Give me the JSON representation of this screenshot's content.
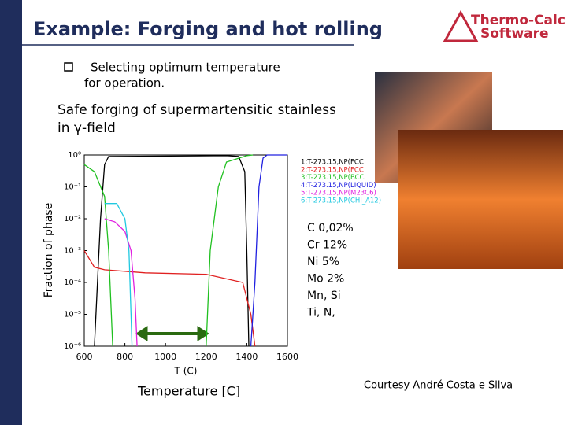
{
  "header": {
    "title": "Example: Forging and hot rolling",
    "logo_line1": "Thermo-Calc",
    "logo_line2": "Software"
  },
  "bullet": {
    "lines": [
      "Selecting optimum temperature",
      "for operation."
    ]
  },
  "subtitle": {
    "lines": [
      "Safe forging of supermartensitic stainless",
      "in γ-field"
    ]
  },
  "composition": [
    "C 0,02%",
    "Cr 12%",
    "Ni 5%",
    "Mo 2%",
    "Mn, Si",
    "Ti, N,"
  ],
  "temperature_label": "Temperature [C]",
  "courtesy": "Courtesy André Costa e Silva",
  "chart_data": {
    "type": "line",
    "x_label": "T (C)",
    "y_label": "Fraction of phase",
    "log_y": true,
    "xlim": [
      600,
      1600
    ],
    "xticks": [
      600,
      800,
      1000,
      1200,
      1400,
      1600
    ],
    "ylim": [
      1e-06,
      1
    ],
    "yticks": [
      {
        "value": 1,
        "label": "10⁰"
      },
      {
        "value": 0.1,
        "label": "10⁻¹"
      },
      {
        "value": 0.01,
        "label": "10⁻²"
      },
      {
        "value": 0.001,
        "label": "10⁻³"
      },
      {
        "value": 0.0001,
        "label": "10⁻⁴"
      },
      {
        "value": 1e-05,
        "label": "10⁻⁵"
      },
      {
        "value": 1e-06,
        "label": "10⁻⁶"
      }
    ],
    "series": [
      {
        "name": "1:T-273.15,NP(FCC",
        "color": "#000000",
        "x": [
          650,
          680,
          700,
          720,
          1300,
          1360,
          1390,
          1400,
          1410
        ],
        "values": [
          1e-06,
          0.01,
          0.5,
          0.9,
          0.95,
          0.9,
          0.3,
          0.001,
          1e-06
        ]
      },
      {
        "name": "2:T-273.15,NP(FCC",
        "color": "#e02020",
        "x": [
          600,
          650,
          700,
          900,
          1200,
          1380,
          1420,
          1440
        ],
        "values": [
          0.001,
          0.0003,
          0.00025,
          0.0002,
          0.00018,
          0.0001,
          1e-05,
          1e-06
        ]
      },
      {
        "name": "3:T-273.15,NP(BCC",
        "color": "#20c020",
        "x": [
          600,
          650,
          700,
          720,
          740,
          760,
          1200,
          1220,
          1260,
          1300,
          1400,
          1430
        ],
        "values": [
          0.5,
          0.3,
          0.05,
          0.001,
          1e-06,
          null,
          1e-06,
          0.001,
          0.1,
          0.6,
          0.95,
          1
        ]
      },
      {
        "name": "4:T-273.15,NP(LIQUID)",
        "color": "#2020e0",
        "x": [
          1420,
          1440,
          1460,
          1480,
          1500,
          1600
        ],
        "values": [
          1e-06,
          0.0001,
          0.1,
          0.8,
          1,
          1
        ]
      },
      {
        "name": "5:T-273.15,NP(M23C6)",
        "color": "#e020e0",
        "x": [
          700,
          750,
          800,
          830,
          850,
          860
        ],
        "values": [
          0.01,
          0.008,
          0.004,
          0.001,
          3e-05,
          1e-06
        ]
      },
      {
        "name": "6:T-273.15,NP(CHI_A12)",
        "color": "#20c8e0",
        "x": [
          700,
          760,
          800,
          820,
          835
        ],
        "values": [
          0.03,
          0.03,
          0.01,
          0.001,
          1e-06
        ]
      }
    ]
  }
}
